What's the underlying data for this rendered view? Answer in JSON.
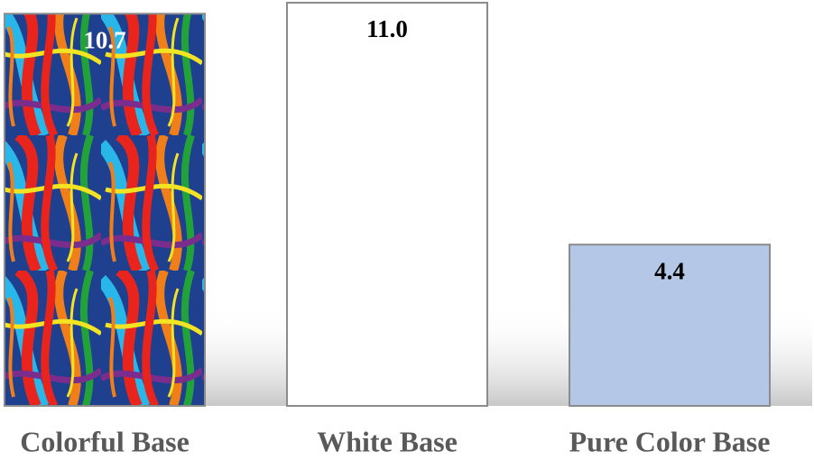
{
  "chart_data": {
    "type": "bar",
    "categories": [
      "Colorful Base",
      "White Base",
      "Pure Color Base"
    ],
    "values": [
      10.7,
      11.0,
      4.4
    ],
    "value_labels": [
      "10.7",
      "11.0",
      "4.4"
    ],
    "colors": [
      "#1f3f8f",
      "#ffffff",
      "#b4c7e7"
    ],
    "patterned": [
      true,
      false,
      false
    ]
  }
}
